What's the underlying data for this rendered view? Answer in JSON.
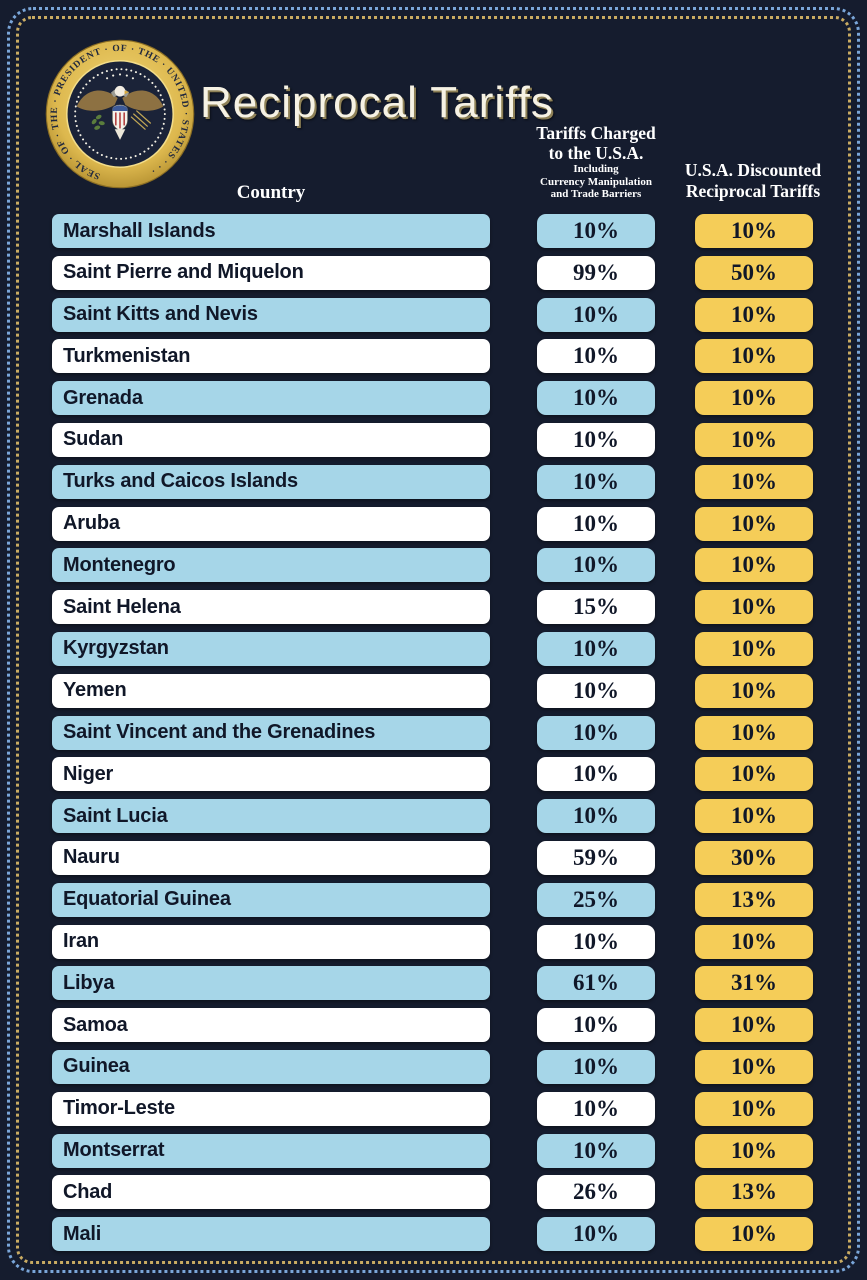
{
  "page": {
    "title": "Reciprocal Tariffs"
  },
  "seal": {
    "name": "Seal of the President of the United States",
    "ring_text": "SEAL · OF · THE · PRESIDENT · OF · THE · UNITED · STATES · · ·"
  },
  "columns": {
    "country_label": "Country",
    "charged_title_line1": "Tariffs Charged",
    "charged_title_line2": "to the U.S.A.",
    "charged_sub_line1": "Including",
    "charged_sub_line2": "Currency Manipulation",
    "charged_sub_line3": "and Trade Barriers",
    "discounted_title_line1": "U.S.A. Discounted",
    "discounted_title_line2": "Reciprocal Tariffs"
  },
  "colors": {
    "bg": "#151c2e",
    "row_blue": "#a6d6e8",
    "row_white": "#ffffff",
    "cell_yellow": "#f5cd58",
    "text_dark": "#101728",
    "header_text": "#ffffff",
    "title_text": "#f6f2e4",
    "title_shadow": "#8e8157",
    "border_blue": "#7aa6d9",
    "border_gold": "#c9ab62"
  },
  "chart_data": {
    "type": "table",
    "title": "Reciprocal Tariffs",
    "columns": [
      "Country",
      "Tariffs Charged to the U.S.A. Including Currency Manipulation and Trade Barriers",
      "U.S.A. Discounted Reciprocal Tariffs"
    ],
    "categories": [
      "Marshall Islands",
      "Saint Pierre and Miquelon",
      "Saint Kitts and Nevis",
      "Turkmenistan",
      "Grenada",
      "Sudan",
      "Turks and Caicos Islands",
      "Aruba",
      "Montenegro",
      "Saint Helena",
      "Kyrgyzstan",
      "Yemen",
      "Saint Vincent and the Grenadines",
      "Niger",
      "Saint Lucia",
      "Nauru",
      "Equatorial Guinea",
      "Iran",
      "Libya",
      "Samoa",
      "Guinea",
      "Timor-Leste",
      "Montserrat",
      "Chad",
      "Mali"
    ],
    "series": [
      {
        "name": "Tariffs Charged to the U.S.A. (%)",
        "values": [
          10,
          99,
          10,
          10,
          10,
          10,
          10,
          10,
          10,
          15,
          10,
          10,
          10,
          10,
          10,
          59,
          25,
          10,
          61,
          10,
          10,
          10,
          10,
          26,
          10
        ]
      },
      {
        "name": "U.S.A. Discounted Reciprocal Tariffs (%)",
        "values": [
          10,
          50,
          10,
          10,
          10,
          10,
          10,
          10,
          10,
          10,
          10,
          10,
          10,
          10,
          10,
          30,
          13,
          10,
          31,
          10,
          10,
          10,
          10,
          13,
          10
        ]
      }
    ],
    "rows": [
      {
        "country": "Marshall Islands",
        "charged": "10%",
        "discounted": "10%"
      },
      {
        "country": "Saint Pierre and Miquelon",
        "charged": "99%",
        "discounted": "50%"
      },
      {
        "country": "Saint Kitts and Nevis",
        "charged": "10%",
        "discounted": "10%"
      },
      {
        "country": "Turkmenistan",
        "charged": "10%",
        "discounted": "10%"
      },
      {
        "country": "Grenada",
        "charged": "10%",
        "discounted": "10%"
      },
      {
        "country": "Sudan",
        "charged": "10%",
        "discounted": "10%"
      },
      {
        "country": "Turks and Caicos Islands",
        "charged": "10%",
        "discounted": "10%"
      },
      {
        "country": "Aruba",
        "charged": "10%",
        "discounted": "10%"
      },
      {
        "country": "Montenegro",
        "charged": "10%",
        "discounted": "10%"
      },
      {
        "country": "Saint Helena",
        "charged": "15%",
        "discounted": "10%"
      },
      {
        "country": "Kyrgyzstan",
        "charged": "10%",
        "discounted": "10%"
      },
      {
        "country": "Yemen",
        "charged": "10%",
        "discounted": "10%"
      },
      {
        "country": "Saint Vincent and the Grenadines",
        "charged": "10%",
        "discounted": "10%"
      },
      {
        "country": "Niger",
        "charged": "10%",
        "discounted": "10%"
      },
      {
        "country": "Saint Lucia",
        "charged": "10%",
        "discounted": "10%"
      },
      {
        "country": "Nauru",
        "charged": "59%",
        "discounted": "30%"
      },
      {
        "country": "Equatorial Guinea",
        "charged": "25%",
        "discounted": "13%"
      },
      {
        "country": "Iran",
        "charged": "10%",
        "discounted": "10%"
      },
      {
        "country": "Libya",
        "charged": "61%",
        "discounted": "31%"
      },
      {
        "country": "Samoa",
        "charged": "10%",
        "discounted": "10%"
      },
      {
        "country": "Guinea",
        "charged": "10%",
        "discounted": "10%"
      },
      {
        "country": "Timor-Leste",
        "charged": "10%",
        "discounted": "10%"
      },
      {
        "country": "Montserrat",
        "charged": "10%",
        "discounted": "10%"
      },
      {
        "country": "Chad",
        "charged": "26%",
        "discounted": "13%"
      },
      {
        "country": "Mali",
        "charged": "10%",
        "discounted": "10%"
      }
    ]
  }
}
